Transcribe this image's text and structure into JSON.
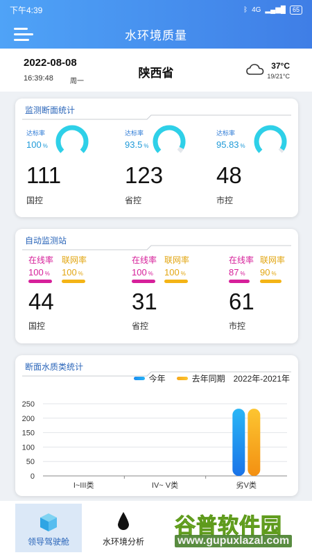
{
  "status_bar": {
    "time": "下午4:39",
    "network": "4G",
    "battery": "65"
  },
  "header": {
    "title": "水环境质量",
    "menu_icon": "menu-icon"
  },
  "info": {
    "date": "2022-08-08",
    "time": "16:39:48",
    "weekday": "周一",
    "province": "陕西省",
    "weather_icon": "cloud-icon",
    "temp": "37°C",
    "temp_range": "19/21°C"
  },
  "section_stats": {
    "title": "监测断面统计",
    "items": [
      {
        "rate_label": "达标率",
        "rate": "100",
        "rate_fraction": 1.0,
        "count": "111",
        "label": "国控"
      },
      {
        "rate_label": "达标率",
        "rate": "93.5",
        "rate_fraction": 0.935,
        "count": "123",
        "label": "省控"
      },
      {
        "rate_label": "达标率",
        "rate": "95.83",
        "rate_fraction": 0.9583,
        "count": "48",
        "label": "市控"
      }
    ]
  },
  "auto_stations": {
    "title": "自动监测站",
    "items": [
      {
        "online_label": "在线率",
        "online": "100",
        "online_fraction": 1.0,
        "network_label": "联网率",
        "network": "100",
        "network_fraction": 1.0,
        "count": "44",
        "label": "国控"
      },
      {
        "online_label": "在线率",
        "online": "100",
        "online_fraction": 1.0,
        "network_label": "联网率",
        "network": "100",
        "network_fraction": 1.0,
        "count": "31",
        "label": "省控"
      },
      {
        "online_label": "在线率",
        "online": "87",
        "online_fraction": 0.87,
        "network_label": "联网率",
        "network": "90",
        "network_fraction": 0.9,
        "count": "61",
        "label": "市控"
      }
    ]
  },
  "water_quality": {
    "title": "断面水质类统计",
    "legend": {
      "this_year": "今年",
      "last_year": "去年同期",
      "period": "2022年-2021年"
    }
  },
  "chart_data": {
    "type": "bar",
    "title": "断面水质类统计",
    "categories": [
      "I~III类",
      "IV~ V类",
      "劣V类"
    ],
    "series": [
      {
        "name": "今年",
        "values": [
          0,
          0,
          233
        ]
      },
      {
        "name": "去年同期",
        "values": [
          0,
          0,
          233
        ]
      }
    ],
    "yticks": [
      0,
      50,
      100,
      150,
      200,
      250
    ],
    "ylim": [
      0,
      250
    ],
    "grid": true,
    "legend_position": "top-right",
    "colors": {
      "this_year": "#1a8cf0",
      "last_year": "#f6a81a"
    }
  },
  "tabs": [
    {
      "label": "领导驾驶舱",
      "icon": "cube-icon",
      "active": true
    },
    {
      "label": "水环境分析",
      "icon": "water-drop-icon",
      "active": false
    }
  ],
  "watermark": {
    "text": "谷普软件园",
    "url": "www.gupuxlazal.com"
  },
  "colors": {
    "accent": "#3f7ee6",
    "gauge": "#2ed0e8",
    "online": "#d6209a",
    "network": "#f4b416"
  }
}
